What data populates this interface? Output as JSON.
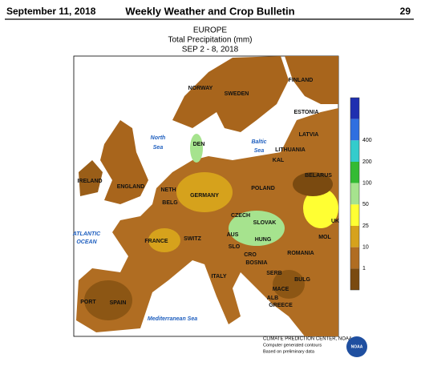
{
  "header": {
    "date": "September 11, 2018",
    "title": "Weekly Weather and Crop Bulletin",
    "page": "29"
  },
  "map": {
    "region": "EUROPE",
    "variable": "Total Precipitation (mm)",
    "period": "SEP 2 - 8, 2018",
    "countries": [
      "NORWAY",
      "SWEDEN",
      "FINLAND",
      "ESTONIA",
      "LATVIA",
      "LITHUANIA",
      "DEN",
      "KAL",
      "BELARUS",
      "IRELAND",
      "ENGLAND",
      "NETH",
      "BELG",
      "GERMANY",
      "POLAND",
      "CZECH",
      "SLOVAK",
      "UK",
      "AUS",
      "HUNG",
      "SWITZ",
      "FRANCE",
      "MOL",
      "ROMANIA",
      "SLO",
      "CRO",
      "BOSNIA",
      "SERB",
      "ITALY",
      "BULG",
      "MACE",
      "ALB",
      "GREECE",
      "PORT",
      "SPAIN"
    ],
    "seas": [
      "North",
      "Sea",
      "Baltic",
      "Sea",
      "ATLANTIC",
      "OCEAN",
      "Mediterranean Sea"
    ]
  },
  "legend": [
    "400",
    "200",
    "100",
    "50",
    "25",
    "10",
    "1"
  ],
  "credits": [
    "CLIMATE PREDICTION CENTER, NOAA",
    "Computer generated contours",
    "Based on preliminary data"
  ],
  "logo": "NOAA"
}
